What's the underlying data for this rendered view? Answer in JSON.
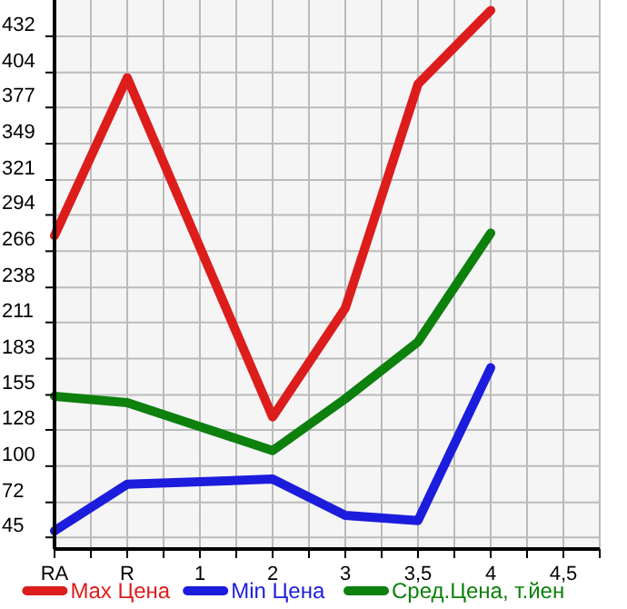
{
  "chart_data": {
    "type": "line",
    "categories": [
      "RA",
      "R",
      "1",
      "2",
      "3",
      "3,5",
      "4",
      "4,5"
    ],
    "series": [
      {
        "name": "Max Цена",
        "color": "#dd1c1c",
        "values": [
          278,
          400,
          null,
          138,
          222,
          395,
          452,
          null
        ]
      },
      {
        "name": "Min Цена",
        "color": "#1c1cdd",
        "values": [
          50,
          86,
          null,
          90,
          62,
          58,
          176,
          null
        ]
      },
      {
        "name": "Сред.Цена, т.йен",
        "color": "#0d800d",
        "values": [
          154,
          149,
          null,
          112,
          152,
          196,
          280,
          null
        ]
      }
    ],
    "ylim": [
      36,
      460
    ],
    "yticks": [
      45,
      72,
      100,
      128,
      155,
      183,
      211,
      238,
      266,
      294,
      321,
      349,
      377,
      404,
      432
    ],
    "grid": true,
    "legend": "bottom",
    "marker": "none",
    "line_style": "solid"
  }
}
